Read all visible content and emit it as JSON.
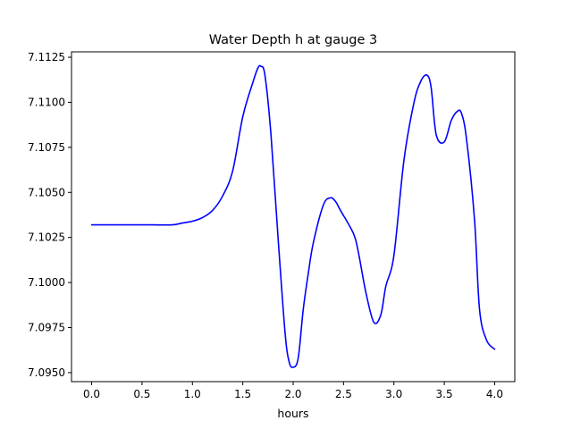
{
  "chart_data": {
    "type": "line",
    "title": "Water Depth h at gauge 3",
    "xlabel": "hours",
    "ylabel": "",
    "xlim": [
      -0.2,
      4.2
    ],
    "ylim": [
      7.0945,
      7.1128
    ],
    "xticks": [
      0.0,
      0.5,
      1.0,
      1.5,
      2.0,
      2.5,
      3.0,
      3.5,
      4.0
    ],
    "xtick_labels": [
      "0.0",
      "0.5",
      "1.0",
      "1.5",
      "2.0",
      "2.5",
      "3.0",
      "3.5",
      "4.0"
    ],
    "yticks": [
      7.095,
      7.0975,
      7.1,
      7.1025,
      7.105,
      7.1075,
      7.11,
      7.1125
    ],
    "ytick_labels": [
      "7.0950",
      "7.0975",
      "7.1000",
      "7.1025",
      "7.1050",
      "7.1075",
      "7.1100",
      "7.1125"
    ],
    "grid": false,
    "series": [
      {
        "color": "#0000ff",
        "x": [
          0.0,
          0.2,
          0.4,
          0.6,
          0.8,
          0.9,
          1.0,
          1.1,
          1.2,
          1.3,
          1.4,
          1.5,
          1.6,
          1.65,
          1.68,
          1.72,
          1.78,
          1.85,
          1.92,
          1.96,
          2.0,
          2.05,
          2.1,
          2.15,
          2.2,
          2.3,
          2.37,
          2.42,
          2.47,
          2.6,
          2.65,
          2.72,
          2.8,
          2.87,
          2.92,
          3.0,
          3.1,
          3.2,
          3.27,
          3.33,
          3.37,
          3.42,
          3.5,
          3.57,
          3.63,
          3.67,
          3.72,
          3.8,
          3.85,
          3.92,
          4.0
        ],
        "y": [
          7.1032,
          7.1032,
          7.1032,
          7.1032,
          7.1032,
          7.1033,
          7.1034,
          7.1036,
          7.104,
          7.1048,
          7.1062,
          7.1092,
          7.1111,
          7.1119,
          7.112,
          7.1115,
          7.1082,
          7.1025,
          7.0972,
          7.0956,
          7.0953,
          7.0958,
          7.0985,
          7.1005,
          7.1022,
          7.1043,
          7.1047,
          7.1045,
          7.104,
          7.1027,
          7.1016,
          7.0995,
          7.0978,
          7.0982,
          7.0998,
          7.1015,
          7.1068,
          7.11,
          7.1112,
          7.1115,
          7.1108,
          7.1082,
          7.1078,
          7.109,
          7.1095,
          7.1094,
          7.108,
          7.1035,
          7.0985,
          7.0968,
          7.0963
        ]
      }
    ]
  }
}
